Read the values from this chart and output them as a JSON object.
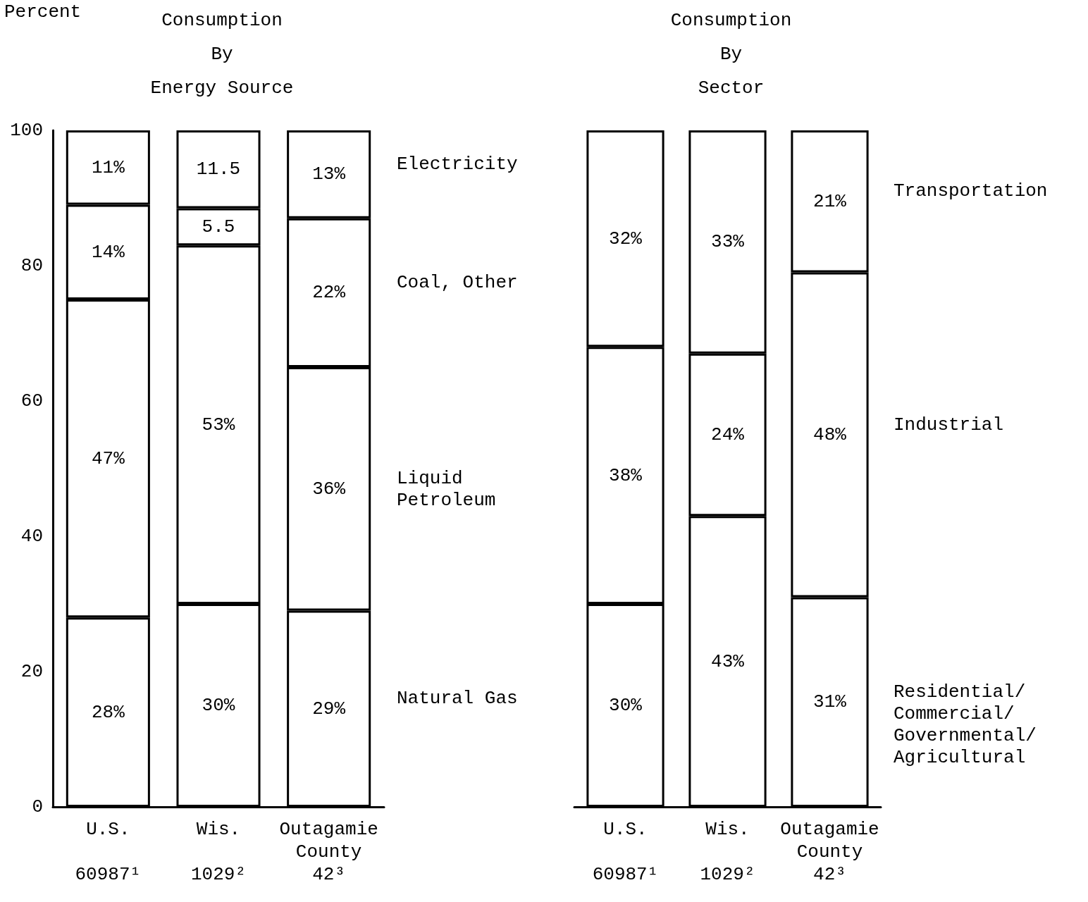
{
  "chart_data": [
    {
      "type": "bar",
      "stacked": true,
      "title": "Consumption\nBy\nEnergy Source",
      "ylabel": "Percent",
      "categories": [
        "U.S.\n\n60987¹",
        "Wis.\n\n1029²",
        "Outagamie\nCounty\n42³"
      ],
      "series": [
        {
          "name": "Natural Gas",
          "color": "#ffffff",
          "values": [
            28,
            30,
            29
          ],
          "value_labels": [
            "28%",
            "30%",
            "29%"
          ]
        },
        {
          "name": "Liquid Petroleum",
          "color": "#ffffff",
          "values": [
            47,
            53,
            36
          ],
          "value_labels": [
            "47%",
            "53%",
            "36%"
          ]
        },
        {
          "name": "Coal, Other",
          "color": "#ffffff",
          "values": [
            14,
            5.5,
            22
          ],
          "value_labels": [
            "14%",
            "5.5",
            "22%"
          ]
        },
        {
          "name": "Electricity",
          "color": "#ffffff",
          "values": [
            11,
            11.5,
            13
          ],
          "value_labels": [
            "11%",
            "11.5",
            "13%"
          ]
        }
      ],
      "ylim": [
        0,
        100
      ],
      "yticks": [
        0,
        20,
        40,
        60,
        80,
        100
      ],
      "grid": false
    },
    {
      "type": "bar",
      "stacked": true,
      "title": "Consumption\nBy\nSector",
      "categories": [
        "U.S.\n\n60987¹",
        "Wis.\n\n1029²",
        "Outagamie\nCounty\n42³"
      ],
      "series": [
        {
          "name": "Residential/Commercial/Governmental/Agricultural",
          "color": "#ffffff",
          "values": [
            30,
            43,
            31
          ],
          "value_labels": [
            "30%",
            "43%",
            "31%"
          ]
        },
        {
          "name": "Industrial",
          "color": "#ffffff",
          "values": [
            38,
            24,
            48
          ],
          "value_labels": [
            "38%",
            "24%",
            "48%"
          ]
        },
        {
          "name": "Transportation",
          "color": "#ffffff",
          "values": [
            32,
            33,
            21
          ],
          "value_labels": [
            "32%",
            "33%",
            "21%"
          ]
        }
      ],
      "ylim": [
        0,
        100
      ],
      "yticks": [
        0,
        20,
        40,
        60,
        80,
        100
      ],
      "grid": false,
      "tick_labels": "x"
    }
  ]
}
